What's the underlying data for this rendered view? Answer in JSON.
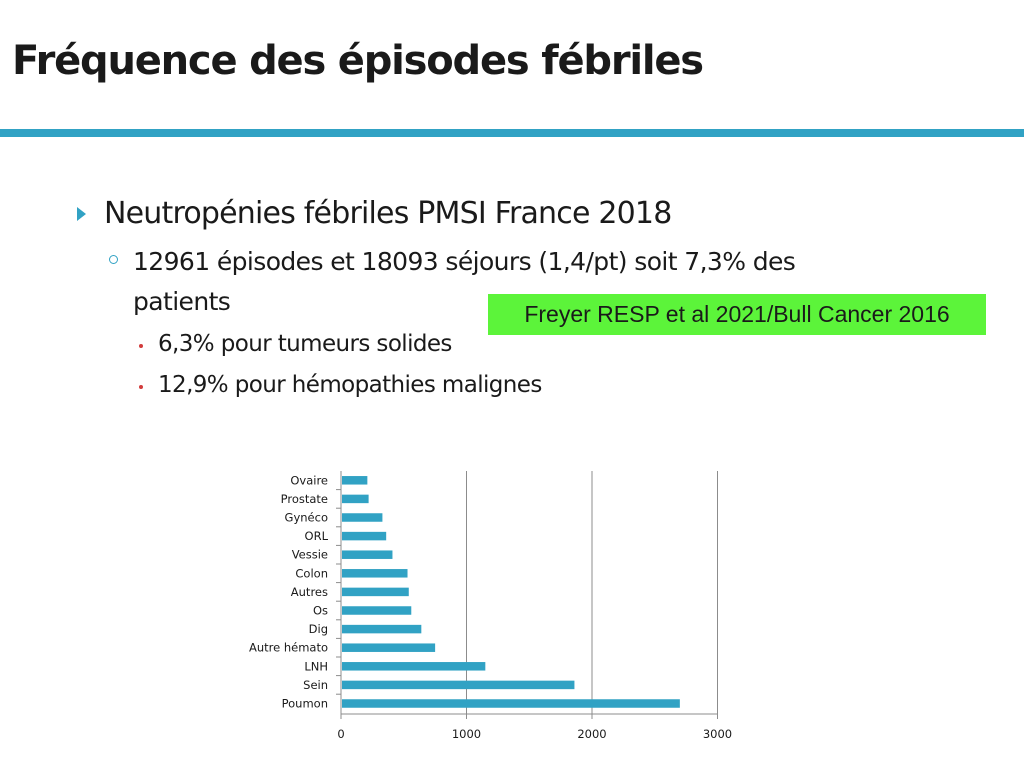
{
  "slide": {
    "title": "Fréquence des épisodes fébriles",
    "bullets": {
      "level1": "Neutropénies fébriles PMSI France 2018",
      "level2_line1": "12961 épisodes et 18093 séjours (1,4/pt) soit 7,3% des",
      "level2_line2": "patients",
      "level3": [
        "6,3% pour tumeurs solides",
        "12,9% pour hémopathies malignes"
      ]
    },
    "citation": "Freyer RESP et al 2021/Bull Cancer 2016"
  },
  "colors": {
    "accent": "#31a2c4",
    "bar": "#31a2c4",
    "citation_bg": "#5cf43a",
    "sub_bullet": "#d23c3c"
  },
  "chart_data": {
    "type": "bar",
    "orientation": "horizontal",
    "categories": [
      "Ovaire",
      "Prostate",
      "Gynéco",
      "ORL",
      "Vessie",
      "Colon",
      "Autres",
      "Os",
      "Dig",
      "Autre hémato",
      "LNH",
      "Sein",
      "Poumon"
    ],
    "values": [
      210,
      220,
      330,
      360,
      410,
      530,
      540,
      560,
      640,
      750,
      1150,
      1860,
      2700
    ],
    "xlim": [
      0,
      3000
    ],
    "xticks": [
      "0",
      "1000",
      "2000",
      "3000"
    ],
    "grid": true,
    "title": "",
    "xlabel": "",
    "ylabel": ""
  }
}
